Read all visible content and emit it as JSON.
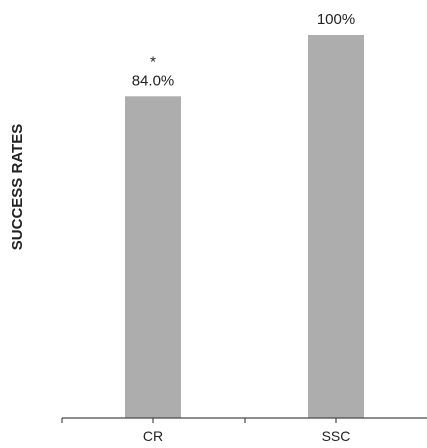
{
  "chart_data": {
    "type": "bar",
    "categories": [
      "CR",
      "SSC"
    ],
    "values": [
      84.0,
      100
    ],
    "data_labels": [
      "84.0%",
      "100%"
    ],
    "significance_marks": [
      "*",
      ""
    ],
    "ylabel": "SUCCESS RATES",
    "xlabel": "",
    "ylim": [
      0,
      100
    ],
    "grid": false,
    "colors": {
      "bar": "#adadad",
      "axis": "#4a4a4a",
      "text": "#222222"
    }
  }
}
